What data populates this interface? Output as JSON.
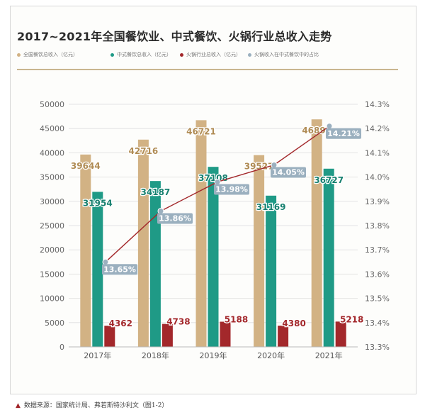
{
  "chart_data": {
    "type": "bar",
    "title": "2017~2021年全国餐饮业、中式餐饮、火锅行业总收入走势",
    "categories": [
      "2017年",
      "2018年",
      "2019年",
      "2020年",
      "2021年"
    ],
    "series": [
      {
        "name": "全国餐饮总收入（亿元）",
        "type": "bar",
        "color": "#d2b284",
        "values": [
          39644,
          42716,
          46721,
          39527,
          46895
        ]
      },
      {
        "name": "中式餐饮总收入（亿元）",
        "type": "bar",
        "color": "#1f9a86",
        "values": [
          31954,
          34187,
          37108,
          31169,
          36727
        ]
      },
      {
        "name": "火锅行业总收入（亿元）",
        "type": "bar",
        "color": "#a3282b",
        "values": [
          4362,
          4738,
          5188,
          4380,
          5218
        ]
      },
      {
        "name": "火锅收入在中式餐饮中的占比",
        "type": "line",
        "axis": "right",
        "color": "#a3282b",
        "marker_color": "#9bb0bf",
        "values": [
          13.65,
          13.86,
          13.98,
          14.05,
          14.21
        ],
        "labels": [
          "13.65%",
          "13.86%",
          "13.98%",
          "14.05%",
          "14.21%"
        ]
      }
    ],
    "y_left": {
      "lim": [
        0,
        50000
      ],
      "ticks": [
        "0",
        "5000",
        "10000",
        "15000",
        "20000",
        "25000",
        "30000",
        "35000",
        "40000",
        "45000",
        "50000"
      ]
    },
    "y_right": {
      "lim": [
        13.3,
        14.3
      ],
      "ticks": [
        "13.3%",
        "13.4%",
        "13.5%",
        "13.6%",
        "13.7%",
        "13.8%",
        "13.9%",
        "14.0%",
        "14.1%",
        "14.2%",
        "14.3%"
      ]
    },
    "grid": true,
    "legend_position": "top"
  },
  "source": "数据来源：国家统计局、弗若斯特沙利文（图1-2）",
  "colors": {
    "accent_rule": "#c9b68f",
    "gridline": "#e4e4e4",
    "label_box": "#9bb0bf"
  }
}
